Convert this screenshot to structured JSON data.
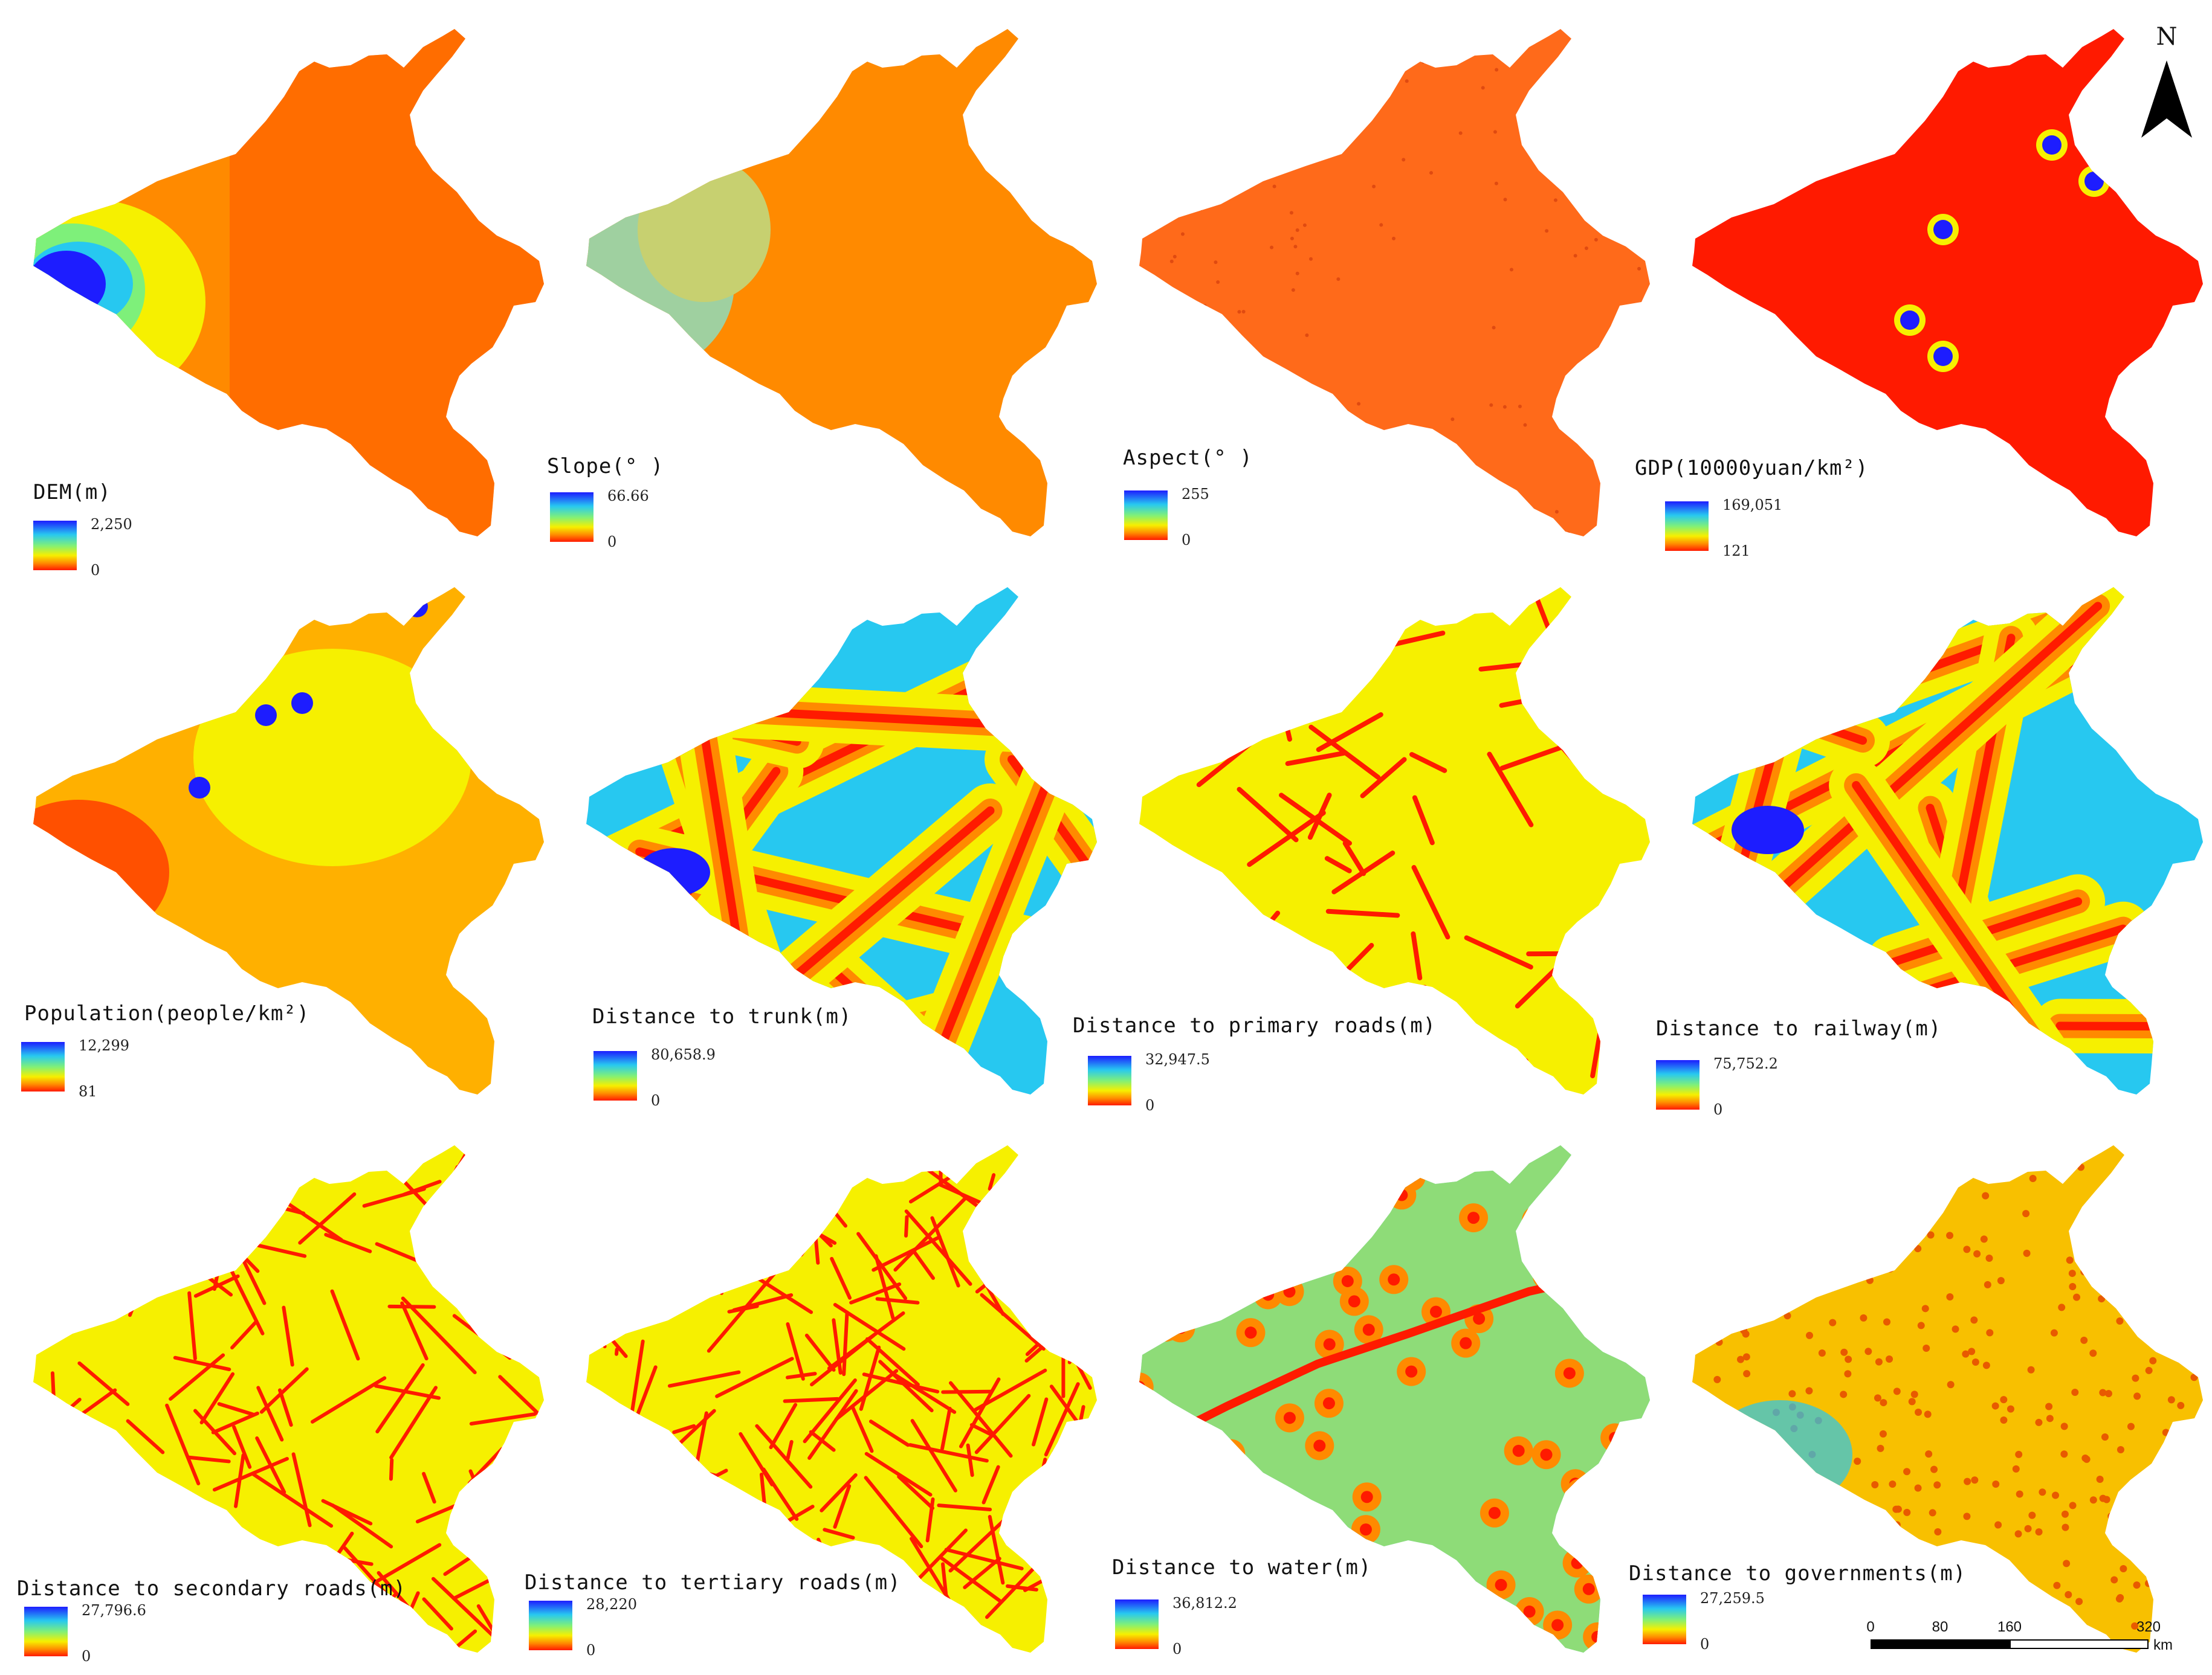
{
  "colors": {
    "high": "#1d1dff",
    "mid_high": "#27c8f0",
    "mid": "#7ef07a",
    "mid_low": "#f6f000",
    "low_orange": "#ff8a00",
    "low": "#ff1a00"
  },
  "north_arrow": {
    "label": "N"
  },
  "scale_bar": {
    "ticks": [
      "0",
      "80",
      "160",
      "320"
    ],
    "unit": "km"
  },
  "panels": [
    {
      "id": "dem",
      "title": "DEM(m)",
      "legend_max": "2,250",
      "legend_min": "0",
      "style": "dem"
    },
    {
      "id": "slope",
      "title": "Slope(° )",
      "legend_max": "66.66",
      "legend_min": "0",
      "style": "slope"
    },
    {
      "id": "aspect",
      "title": "Aspect(° )",
      "legend_max": "255",
      "legend_min": "0",
      "style": "aspect"
    },
    {
      "id": "gdp",
      "title": "GDP(10000yuan/km²)",
      "legend_max": "169,051",
      "legend_min": "121",
      "style": "gdp"
    },
    {
      "id": "population",
      "title": "Population(people/km²)",
      "legend_max": "12,299",
      "legend_min": "81",
      "style": "population"
    },
    {
      "id": "trunk",
      "title": "Distance to trunk(m)",
      "legend_max": "80,658.9",
      "legend_min": "0",
      "style": "trunk"
    },
    {
      "id": "primary",
      "title": "Distance to primary roads(m)",
      "legend_max": "32,947.5",
      "legend_min": "0",
      "style": "primary"
    },
    {
      "id": "railway",
      "title": "Distance to railway(m)",
      "legend_max": "75,752.2",
      "legend_min": "0",
      "style": "railway"
    },
    {
      "id": "secondary",
      "title": "Distance to secondary roads(m)",
      "legend_max": "27,796.6",
      "legend_min": "0",
      "style": "secondary"
    },
    {
      "id": "tertiary",
      "title": "Distance to tertiary roads(m)",
      "legend_max": "28,220",
      "legend_min": "0",
      "style": "tertiary"
    },
    {
      "id": "water",
      "title": "Distance to water(m)",
      "legend_max": "36,812.2",
      "legend_min": "0",
      "style": "water"
    },
    {
      "id": "governments",
      "title": "Distance to governments(m)",
      "legend_max": "27,259.5",
      "legend_min": "0",
      "style": "governments"
    }
  ]
}
